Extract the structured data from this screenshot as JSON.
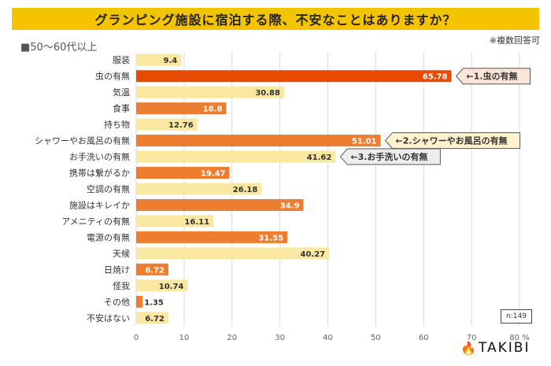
{
  "header": {
    "title": "グランピング施設に宿泊する際、不安なことはありますか？",
    "subtitle": "■50〜60代以上",
    "note": "※複数回答可"
  },
  "sample_size": "n:149",
  "brand": {
    "icon": "campfire-icon",
    "name": "TAKIBI"
  },
  "colors": {
    "title_bg": "#F5C400",
    "bar_light": "#FAE8A0",
    "bar_orange": "#ED7D31",
    "bar_top": "#E84A00",
    "callout1_bg": "#FBE5D6",
    "callout2_bg": "#FFF2CC",
    "callout3_bg": "#EDEDED"
  },
  "chart_data": {
    "type": "bar",
    "orientation": "horizontal",
    "title": "グランピング施設に宿泊する際、不安なことはありますか？",
    "subtitle": "50〜60代以上",
    "xlabel": "",
    "ylabel": "",
    "xlim": [
      0,
      80
    ],
    "x_ticks": [
      "0",
      "10",
      "20",
      "30",
      "40",
      "50",
      "60",
      "70",
      "80 %"
    ],
    "grid": true,
    "categories": [
      "服装",
      "虫の有無",
      "気温",
      "食事",
      "持ち物",
      "シャワーやお風呂の有無",
      "お手洗いの有無",
      "携帯は繋がるか",
      "空調の有無",
      "施設はキレイか",
      "アメニティの有無",
      "電源の有無",
      "天候",
      "日焼け",
      "怪我",
      "その他",
      "不安はない"
    ],
    "values": [
      9.4,
      65.78,
      30.88,
      18.8,
      12.76,
      51.01,
      41.62,
      19.47,
      26.18,
      34.9,
      16.11,
      31.55,
      40.27,
      6.72,
      10.74,
      1.35,
      6.72
    ],
    "value_labels": [
      "9.4",
      "65.78",
      "30.88",
      "18.8",
      "12.76",
      "51.01",
      "41.62",
      "19.47",
      "26.18",
      "34.9",
      "16.11",
      "31.55",
      "40.27",
      "6.72",
      "10.74",
      "1.35",
      "6.72"
    ],
    "bar_styles": [
      "light",
      "top",
      "light",
      "orange",
      "light",
      "orange",
      "light",
      "orange",
      "light",
      "orange",
      "light",
      "orange",
      "light",
      "orange",
      "light",
      "orange",
      "light"
    ],
    "annotations": [
      {
        "category_index": 1,
        "text": "←1.虫の有無",
        "style": "callout1"
      },
      {
        "category_index": 5,
        "text": "←2.シャワーやお風呂の有無",
        "style": "callout2"
      },
      {
        "category_index": 6,
        "text": "←3.お手洗いの有無",
        "style": "callout3"
      }
    ],
    "unit": "%",
    "note": "※複数回答可",
    "sample": "n:149"
  }
}
